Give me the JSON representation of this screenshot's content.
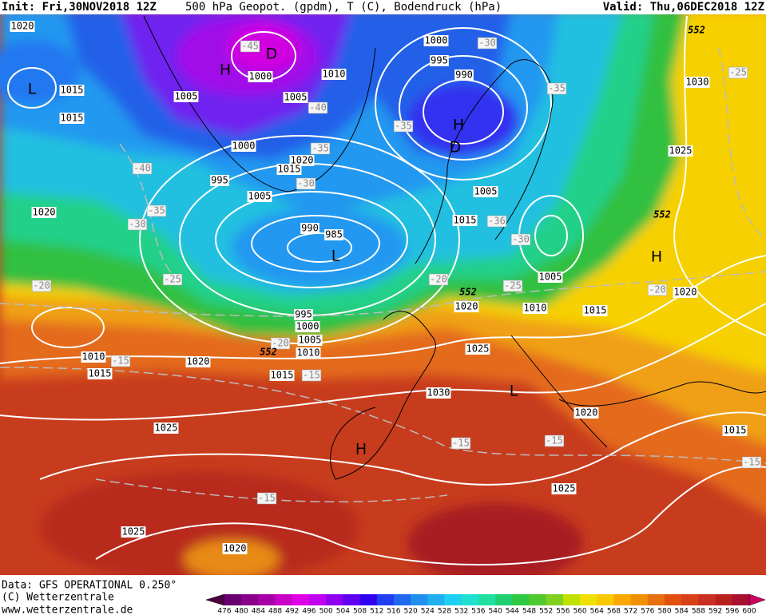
{
  "header": {
    "init": "Init: Fri,30NOV2018 12Z",
    "title": "500 hPa Geopot. (gpdm), T (C), Bodendruck (hPa)",
    "valid": "Valid: Thu,06DEC2018 12Z"
  },
  "footer": {
    "data": "Data: GFS OPERATIONAL 0.250°",
    "copyright": "(C) Wetterzentrale",
    "url": "www.wetterzentrale.de"
  },
  "colorbar": {
    "labels": [
      "476",
      "480",
      "484",
      "488",
      "492",
      "496",
      "500",
      "504",
      "508",
      "512",
      "516",
      "520",
      "524",
      "528",
      "532",
      "536",
      "540",
      "544",
      "548",
      "552",
      "556",
      "560",
      "564",
      "568",
      "572",
      "576",
      "580",
      "584",
      "588",
      "592",
      "596",
      "600"
    ],
    "colors": [
      "#4b0040",
      "#6a0070",
      "#8a008a",
      "#a800a8",
      "#c800c8",
      "#e000e8",
      "#c000f0",
      "#9000f0",
      "#6000f0",
      "#3000f0",
      "#2040f0",
      "#2068f0",
      "#2090f0",
      "#20b0f0",
      "#20d0f0",
      "#20e0d0",
      "#20e0a0",
      "#20d070",
      "#30c840",
      "#50c830",
      "#80d020",
      "#c0e000",
      "#f0e000",
      "#f8c800",
      "#f8a800",
      "#f09000",
      "#e87010",
      "#e05010",
      "#d84018",
      "#c83020",
      "#b82020",
      "#a81030",
      "#d00060"
    ]
  },
  "map": {
    "pressure_labels": [
      "1020",
      "1015",
      "1015",
      "1005",
      "1000",
      "1010",
      "1005",
      "1000",
      "1020",
      "1015",
      "995",
      "1005",
      "1020",
      "990",
      "985",
      "995",
      "1000",
      "1005",
      "1010",
      "1015",
      "1010",
      "1015",
      "1020",
      "1025",
      "1025",
      "1020",
      "1000",
      "995",
      "990",
      "1005",
      "1015",
      "1005",
      "1010",
      "1020",
      "1015",
      "1025",
      "1030",
      "1020",
      "1025",
      "1030",
      "1025",
      "1020",
      "1015"
    ],
    "temperature_labels": [
      "-45",
      "-40",
      "-40",
      "-35",
      "-30",
      "-35",
      "-30",
      "-25",
      "-20",
      "-20",
      "-15",
      "-15",
      "-30",
      "-35",
      "-35",
      "-36",
      "-30",
      "-20",
      "-25",
      "-25",
      "-20",
      "-15",
      "-15",
      "-15",
      "-15"
    ],
    "geopotential_labels": [
      "552",
      "552",
      "552",
      "552"
    ],
    "centers": [
      "L",
      "H",
      "D",
      "H",
      "D",
      "L",
      "H",
      "L",
      "H"
    ]
  }
}
